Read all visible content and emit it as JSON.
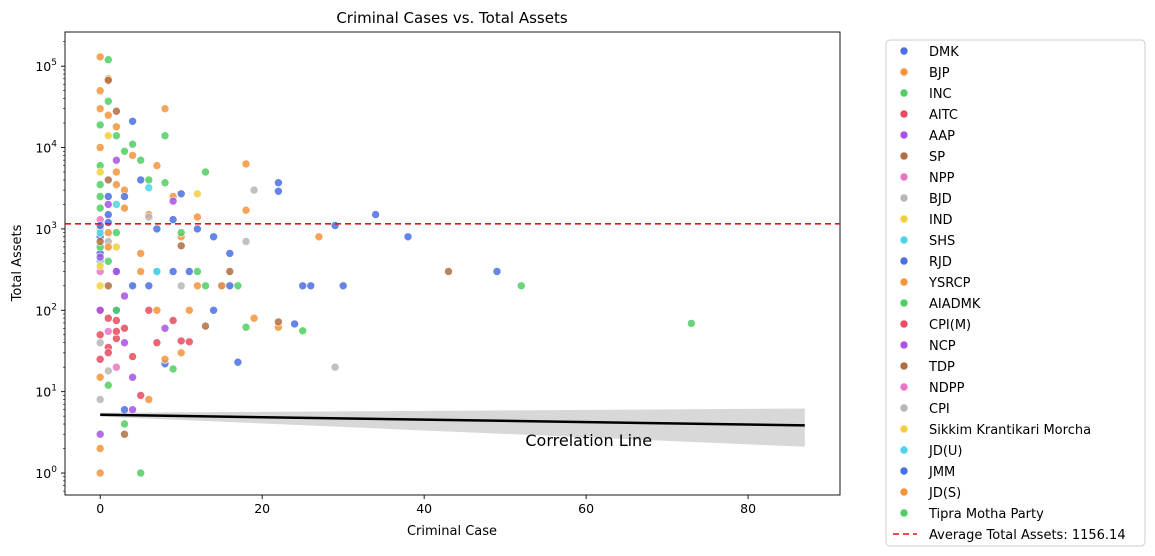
{
  "chart_data": {
    "type": "scatter",
    "title": "Criminal Cases vs. Total Assets",
    "xlabel": "Criminal Case",
    "ylabel": "Total Assets",
    "xlim": [
      -4.35,
      91.35
    ],
    "xticks": [
      0,
      20,
      40,
      60,
      80
    ],
    "ylim_log10": [
      -0.27,
      5.42
    ],
    "yscale": "log",
    "yticks": [
      {
        "value": 1,
        "base": "10",
        "exp": "0"
      },
      {
        "value": 10,
        "base": "10",
        "exp": "1"
      },
      {
        "value": 100,
        "base": "10",
        "exp": "2"
      },
      {
        "value": 1000,
        "base": "10",
        "exp": "3"
      },
      {
        "value": 10000,
        "base": "10",
        "exp": "4"
      },
      {
        "value": 100000,
        "base": "10",
        "exp": "5"
      }
    ],
    "average_line": {
      "value": 1156.14,
      "label": "Average Total Assets: 1156.14",
      "color": "#ee1111"
    },
    "regression": {
      "x_start": 0,
      "x_end": 87,
      "y_start": 5.2,
      "y_end": 3.85,
      "ci_start": [
        4.95,
        5.5
      ],
      "ci_end": [
        2.1,
        6.2
      ],
      "label": "Correlation Line",
      "label_x": 52.5,
      "label_y": 2.15
    },
    "legend": {
      "placement": "outside-right"
    },
    "series": [
      {
        "name": "DMK",
        "color": "#4a6fe3",
        "points": [
          [
            0,
            800
          ],
          [
            1,
            1200
          ],
          [
            2,
            300
          ],
          [
            3,
            6
          ],
          [
            4,
            21000
          ],
          [
            5,
            4000
          ],
          [
            6,
            200
          ],
          [
            7,
            1000
          ],
          [
            9,
            1300
          ],
          [
            10,
            2700
          ],
          [
            11,
            300
          ],
          [
            12,
            1000
          ],
          [
            14,
            800
          ],
          [
            15,
            200
          ],
          [
            16,
            500
          ],
          [
            16,
            200
          ],
          [
            22,
            3700
          ],
          [
            22,
            2900
          ],
          [
            24,
            68
          ],
          [
            25,
            200
          ],
          [
            26,
            200
          ],
          [
            29,
            1100
          ],
          [
            30,
            200
          ],
          [
            34,
            1500
          ],
          [
            38,
            800
          ],
          [
            49,
            300
          ],
          [
            17,
            23
          ],
          [
            8,
            22
          ],
          [
            2,
            100
          ],
          [
            1,
            2500
          ]
        ]
      },
      {
        "name": "BJP",
        "color": "#f5943a",
        "points": [
          [
            0,
            130000
          ],
          [
            0,
            50000
          ],
          [
            0,
            30000
          ],
          [
            0,
            10000
          ],
          [
            1,
            70000
          ],
          [
            1,
            25000
          ],
          [
            2,
            18000
          ],
          [
            2,
            5000
          ],
          [
            3,
            3000
          ],
          [
            4,
            8000
          ],
          [
            5,
            300
          ],
          [
            6,
            1500
          ],
          [
            7,
            6000
          ],
          [
            8,
            30000
          ],
          [
            9,
            2500
          ],
          [
            10,
            800
          ],
          [
            12,
            1400
          ],
          [
            12,
            200
          ],
          [
            15,
            200
          ],
          [
            18,
            6300
          ],
          [
            18,
            1700
          ],
          [
            19,
            80
          ],
          [
            22,
            62
          ],
          [
            27,
            800
          ],
          [
            6,
            8
          ],
          [
            8,
            25
          ],
          [
            10,
            30
          ],
          [
            11,
            100
          ],
          [
            0,
            2
          ],
          [
            0,
            15
          ]
        ]
      },
      {
        "name": "INC",
        "color": "#4fcf63",
        "points": [
          [
            1,
            120000
          ],
          [
            1,
            37000
          ],
          [
            0,
            19000
          ],
          [
            2,
            14000
          ],
          [
            4,
            11000
          ],
          [
            3,
            9000
          ],
          [
            5,
            7000
          ],
          [
            6,
            4000
          ],
          [
            8,
            14000
          ],
          [
            8,
            3700
          ],
          [
            13,
            5000
          ],
          [
            10,
            900
          ],
          [
            7,
            300
          ],
          [
            3,
            4
          ],
          [
            5,
            1
          ],
          [
            9,
            19
          ],
          [
            1,
            12
          ],
          [
            13,
            200
          ],
          [
            17,
            200
          ],
          [
            12,
            300
          ],
          [
            0,
            6000
          ],
          [
            2,
            100
          ],
          [
            25,
            56
          ],
          [
            18,
            62
          ],
          [
            0,
            3500
          ]
        ]
      },
      {
        "name": "AITC",
        "color": "#e84a5f",
        "points": [
          [
            0,
            100
          ],
          [
            1,
            80
          ],
          [
            2,
            45
          ],
          [
            3,
            60
          ],
          [
            4,
            27
          ],
          [
            5,
            9
          ],
          [
            6,
            100
          ],
          [
            7,
            40
          ],
          [
            9,
            75
          ],
          [
            10,
            42
          ],
          [
            11,
            41
          ],
          [
            0,
            25
          ],
          [
            1,
            35
          ],
          [
            2,
            55
          ]
        ]
      },
      {
        "name": "AAP",
        "color": "#a952e6",
        "points": [
          [
            0,
            3
          ],
          [
            0,
            100
          ],
          [
            2,
            300
          ],
          [
            1,
            2000
          ],
          [
            3,
            150
          ],
          [
            4,
            15
          ],
          [
            8,
            60
          ],
          [
            4,
            6
          ],
          [
            3,
            40
          ]
        ]
      },
      {
        "name": "SP",
        "color": "#b06e3f",
        "points": [
          [
            1,
            67000
          ],
          [
            2,
            28000
          ],
          [
            3,
            3
          ],
          [
            10,
            620
          ],
          [
            16,
            300
          ],
          [
            43,
            300
          ],
          [
            22,
            72
          ],
          [
            1,
            200
          ]
        ]
      },
      {
        "name": "NPP",
        "color": "#ea74c4",
        "points": [
          [
            0,
            300
          ],
          [
            1,
            55
          ],
          [
            2,
            20
          ]
        ]
      },
      {
        "name": "BJD",
        "color": "#b6b6b6",
        "points": [
          [
            0,
            8
          ],
          [
            1,
            700
          ],
          [
            6,
            1400
          ],
          [
            18,
            700
          ],
          [
            19,
            3000
          ],
          [
            29,
            20
          ],
          [
            10,
            200
          ]
        ]
      },
      {
        "name": "IND",
        "color": "#f2cf3c",
        "points": [
          [
            0,
            200
          ],
          [
            1,
            14000
          ],
          [
            2,
            600
          ],
          [
            12,
            2700
          ],
          [
            0,
            5000
          ]
        ]
      },
      {
        "name": "SHS",
        "color": "#4dd3e8",
        "points": [
          [
            0,
            400
          ],
          [
            2,
            2000
          ],
          [
            6,
            3200
          ],
          [
            7,
            300
          ]
        ]
      },
      {
        "name": "RJD",
        "color": "#4a6fe3",
        "points": [
          [
            0,
            500
          ],
          [
            1,
            1500
          ],
          [
            3,
            2500
          ],
          [
            4,
            200
          ],
          [
            9,
            300
          ]
        ]
      },
      {
        "name": "YSRCP",
        "color": "#f5943a",
        "points": [
          [
            0,
            1000
          ],
          [
            1,
            900
          ],
          [
            3,
            1800
          ],
          [
            5,
            500
          ],
          [
            7,
            100
          ]
        ]
      },
      {
        "name": "AIADMK",
        "color": "#4fcf63",
        "points": [
          [
            0,
            2500
          ],
          [
            1,
            400
          ],
          [
            2,
            900
          ],
          [
            52,
            200
          ],
          [
            73,
            69
          ],
          [
            0,
            600
          ]
        ]
      },
      {
        "name": "CPI(M)",
        "color": "#e84a5f",
        "points": [
          [
            0,
            50
          ],
          [
            1,
            30
          ],
          [
            2,
            75
          ]
        ]
      },
      {
        "name": "NCP",
        "color": "#a952e6",
        "points": [
          [
            0,
            450
          ],
          [
            2,
            7000
          ],
          [
            9,
            2200
          ]
        ]
      },
      {
        "name": "TDP",
        "color": "#b06e3f",
        "points": [
          [
            0,
            700
          ],
          [
            1,
            4000
          ],
          [
            13,
            64
          ]
        ]
      },
      {
        "name": "NDPP",
        "color": "#ea74c4",
        "points": [
          [
            0,
            1300
          ]
        ]
      },
      {
        "name": "CPI",
        "color": "#b6b6b6",
        "points": [
          [
            0,
            40
          ],
          [
            1,
            18
          ]
        ]
      },
      {
        "name": "Sikkim Krantikari Morcha",
        "color": "#f2cf3c",
        "points": [
          [
            0,
            350
          ]
        ]
      },
      {
        "name": "JD(U)",
        "color": "#4dd3e8",
        "points": [
          [
            0,
            900
          ],
          [
            7,
            300
          ]
        ]
      },
      {
        "name": "JMM",
        "color": "#4a6fe3",
        "points": [
          [
            0,
            1100
          ],
          [
            14,
            100
          ]
        ]
      },
      {
        "name": "JD(S)",
        "color": "#f5943a",
        "points": [
          [
            0,
            1
          ],
          [
            1,
            600
          ],
          [
            2,
            3500
          ]
        ]
      },
      {
        "name": "Tipra Motha Party",
        "color": "#4fcf63",
        "points": [
          [
            0,
            1800
          ]
        ]
      }
    ]
  }
}
